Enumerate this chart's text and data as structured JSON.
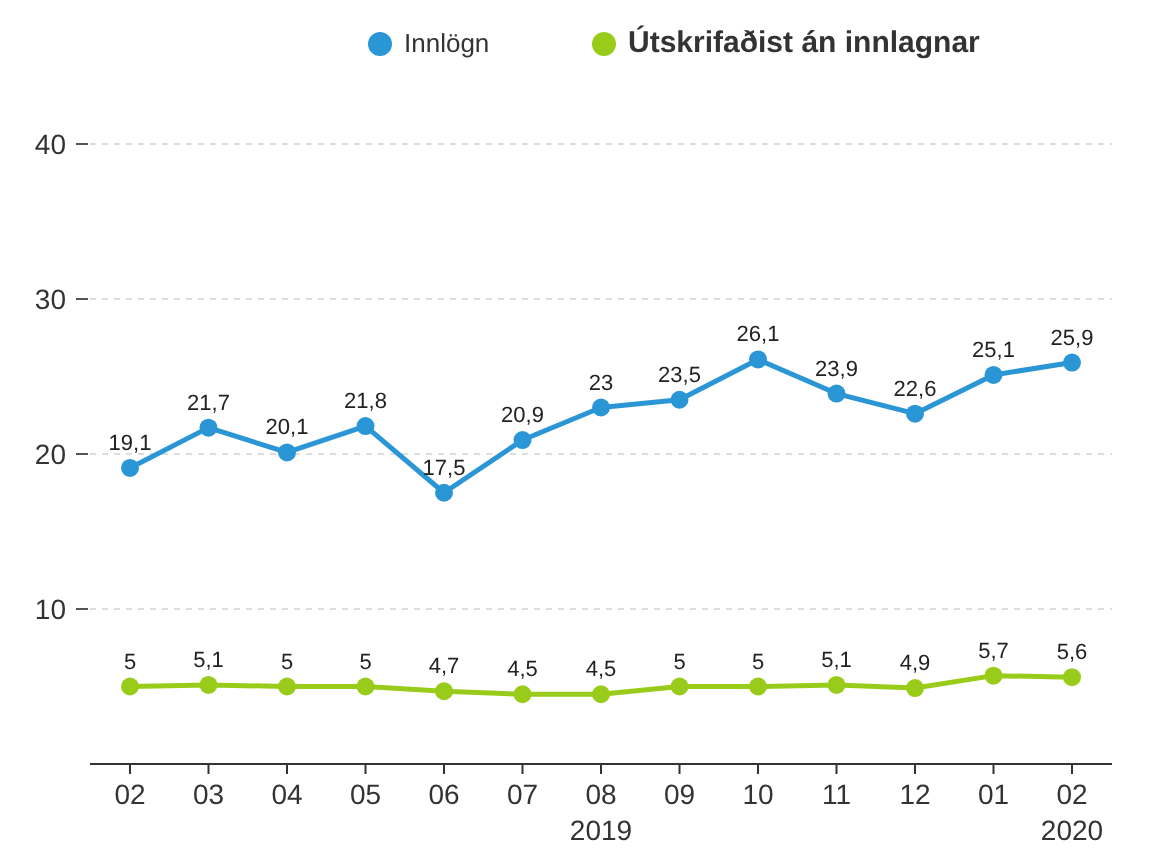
{
  "chart_data": {
    "type": "line",
    "categories": [
      "02",
      "03",
      "04",
      "05",
      "06",
      "07",
      "08\n2019",
      "09",
      "10",
      "11",
      "12",
      "01",
      "02\n2020"
    ],
    "series": [
      {
        "name": "Innlögn",
        "color": "#2b96d6",
        "values": [
          19.1,
          21.7,
          20.1,
          21.8,
          17.5,
          20.9,
          23,
          23.5,
          26.1,
          23.9,
          22.6,
          25.1,
          25.9
        ],
        "value_labels": [
          "19,1",
          "21,7",
          "20,1",
          "21,8",
          "17,5",
          "20,9",
          "23",
          "23,5",
          "26,1",
          "23,9",
          "22,6",
          "25,1",
          "25,9"
        ]
      },
      {
        "name": "Útskrifaðist án innlagnar",
        "color": "#99cc1a",
        "values": [
          5,
          5.1,
          5,
          5,
          4.7,
          4.5,
          4.5,
          5,
          5,
          5.1,
          4.9,
          5.7,
          5.6
        ],
        "value_labels": [
          "5",
          "5,1",
          "5",
          "5",
          "4,7",
          "4,5",
          "4,5",
          "5",
          "5",
          "5,1",
          "4,9",
          "5,7",
          "5,6"
        ]
      }
    ],
    "ylim": [
      0,
      40
    ],
    "yticks": [
      10,
      20,
      30,
      40
    ],
    "grid": "y",
    "legend": "top",
    "marker": "circle"
  }
}
